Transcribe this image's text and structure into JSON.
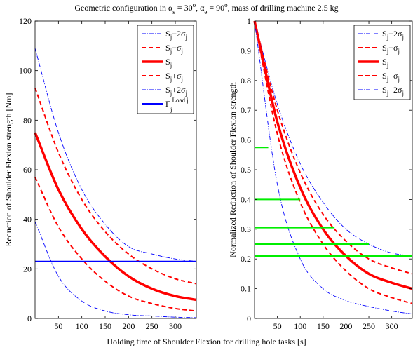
{
  "figure": {
    "title": "Geometric configuration in α_s = 30°, α_e = 90°, mass of drilling machine 2.5 kg",
    "xlabel": "Holding time of Shoulder Flexion for drilling hole tasks [s]"
  },
  "colors": {
    "sigma2": "#0000ff",
    "sigma1": "#ff0000",
    "mean": "#ff0000",
    "load": "#0000ff",
    "green": "#00ee00"
  },
  "chart_data": [
    {
      "type": "line",
      "ylabel": "Reduction of Shoulder Flexion strength [Nm]",
      "xlim": [
        0,
        345
      ],
      "ylim": [
        0,
        120
      ],
      "xticks": [
        50,
        100,
        150,
        200,
        250,
        300
      ],
      "yticks": [
        0,
        20,
        40,
        60,
        80,
        100,
        120
      ],
      "legend_position": "top-right",
      "series": [
        {
          "name": "S_j−2σ_j",
          "style": "sigma2",
          "x": [
            0,
            50,
            100,
            150,
            200,
            250,
            300,
            345
          ],
          "values": [
            109,
            75,
            52,
            38,
            29,
            26,
            24,
            23
          ]
        },
        {
          "name": "S_j−σ_j",
          "style": "sigma1",
          "x": [
            0,
            50,
            100,
            150,
            200,
            250,
            300,
            345
          ],
          "values": [
            93,
            67,
            48,
            35,
            26,
            20,
            16,
            14
          ]
        },
        {
          "name": "S_j",
          "style": "mean",
          "x": [
            0,
            50,
            100,
            150,
            200,
            250,
            300,
            345
          ],
          "values": [
            75,
            52,
            36,
            25,
            17,
            12,
            9,
            7.5
          ]
        },
        {
          "name": "S_j+σ_j",
          "style": "sigma1",
          "x": [
            0,
            50,
            100,
            150,
            200,
            250,
            300,
            345
          ],
          "values": [
            57,
            37,
            24,
            15,
            9,
            6,
            4,
            3
          ]
        },
        {
          "name": "S_j+2σ_j",
          "style": "sigma2",
          "x": [
            0,
            50,
            100,
            150,
            200,
            250,
            300,
            345
          ],
          "values": [
            39,
            17,
            7,
            3,
            1.5,
            1,
            0.5,
            0.3
          ]
        },
        {
          "name": "Γ_j^Load",
          "style": "load",
          "x": [
            0,
            345
          ],
          "values": [
            23,
            23
          ]
        }
      ]
    },
    {
      "type": "line",
      "ylabel": "Normalized Reduction of Shoulder Flexion strength",
      "xlim": [
        0,
        345
      ],
      "ylim": [
        0,
        1
      ],
      "xticks": [
        50,
        100,
        150,
        200,
        250,
        300
      ],
      "yticks": [
        0,
        0.1,
        0.2,
        0.3,
        0.4,
        0.5,
        0.6,
        0.7,
        0.8,
        0.9,
        1
      ],
      "legend_position": "top-right",
      "series": [
        {
          "name": "S_j−2σ_j",
          "style": "sigma2",
          "x": [
            0,
            50,
            100,
            150,
            200,
            250,
            300,
            345
          ],
          "values": [
            1,
            0.72,
            0.52,
            0.39,
            0.3,
            0.25,
            0.22,
            0.21
          ]
        },
        {
          "name": "S_j−σ_j",
          "style": "sigma1",
          "x": [
            0,
            50,
            100,
            150,
            200,
            250,
            300,
            345
          ],
          "values": [
            1,
            0.7,
            0.49,
            0.35,
            0.26,
            0.2,
            0.17,
            0.15
          ]
        },
        {
          "name": "S_j",
          "style": "mean",
          "x": [
            0,
            50,
            100,
            150,
            200,
            250,
            300,
            345
          ],
          "values": [
            1,
            0.66,
            0.44,
            0.3,
            0.21,
            0.15,
            0.12,
            0.1
          ]
        },
        {
          "name": "S_j+σ_j",
          "style": "sigma1",
          "x": [
            0,
            50,
            100,
            150,
            200,
            250,
            300,
            345
          ],
          "values": [
            1,
            0.62,
            0.39,
            0.25,
            0.16,
            0.1,
            0.07,
            0.05
          ]
        },
        {
          "name": "S_j+2σ_j",
          "style": "sigma2",
          "x": [
            0,
            50,
            100,
            150,
            200,
            250,
            300,
            345
          ],
          "values": [
            1,
            0.45,
            0.2,
            0.1,
            0.06,
            0.04,
            0.025,
            0.015
          ]
        }
      ],
      "markers": {
        "style": "green",
        "x0": 0,
        "x1": [
          30,
          100,
          175,
          250,
          345
        ],
        "values": [
          0.575,
          0.4,
          0.305,
          0.25,
          0.21
        ]
      }
    }
  ]
}
